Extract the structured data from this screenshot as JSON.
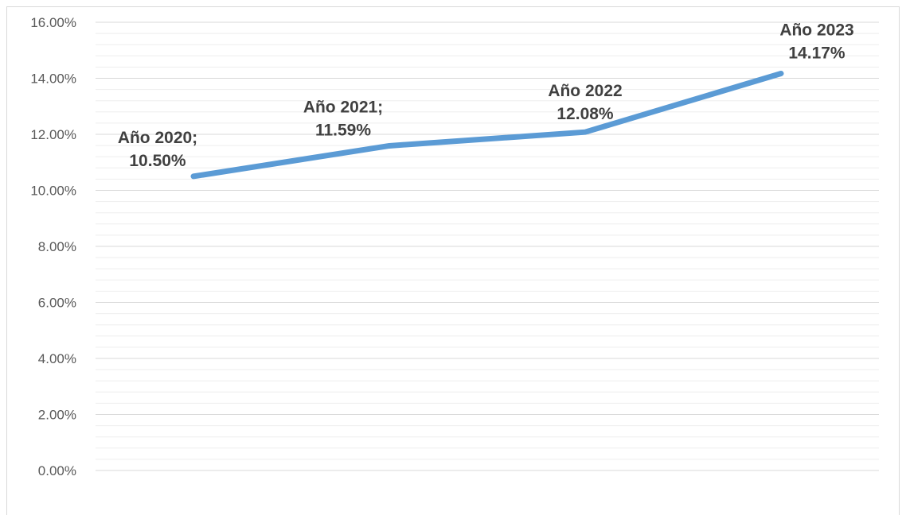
{
  "chart_data": {
    "type": "line",
    "categories": [
      "Año 2020",
      "Año 2021",
      "Año 2022",
      "Año 2023"
    ],
    "values": [
      0.105,
      0.1159,
      0.1208,
      0.1417
    ],
    "data_labels": [
      [
        "Año 2020;",
        "10.50%"
      ],
      [
        "Año 2021;",
        "11.59%"
      ],
      [
        "Año 2022",
        "12.08%"
      ],
      [
        "Año 2023",
        "14.17%"
      ]
    ],
    "y_ticks": [
      "0.00%",
      "2.00%",
      "4.00%",
      "6.00%",
      "8.00%",
      "10.00%",
      "12.00%",
      "14.00%",
      "16.00%"
    ],
    "ylim": [
      0,
      0.16
    ],
    "title": "",
    "xlabel": "",
    "ylabel": "",
    "grid": true,
    "minor_grid": true,
    "legend": "none",
    "colors": {
      "line": "#5b9bd5",
      "major_grid": "#d9d9d9",
      "minor_grid": "#eeeeee",
      "tick_text": "#595959",
      "label_text": "#404040"
    }
  }
}
